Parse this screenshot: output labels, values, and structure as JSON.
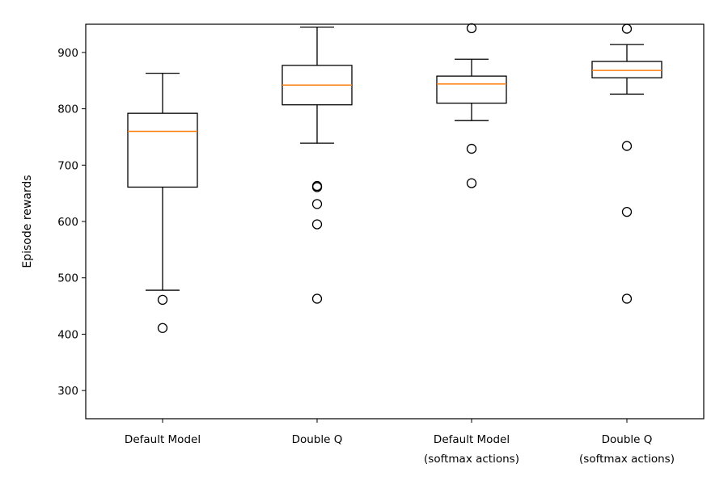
{
  "chart_data": {
    "type": "box",
    "ylabel": "Episode rewards",
    "xlabel": "",
    "ylim": [
      250,
      950
    ],
    "yticks": [
      300,
      400,
      500,
      600,
      700,
      800,
      900
    ],
    "grid": false,
    "categories": [
      [
        "Default Model"
      ],
      [
        "Double Q"
      ],
      [
        "Default Model",
        "(softmax actions)"
      ],
      [
        "Double Q",
        "(softmax actions)"
      ]
    ],
    "boxes": [
      {
        "whisker_low": 478,
        "q1": 661,
        "median": 760,
        "q3": 792,
        "whisker_high": 863,
        "outliers": [
          461,
          411
        ]
      },
      {
        "whisker_low": 739,
        "q1": 807,
        "median": 842,
        "q3": 877,
        "whisker_high": 945,
        "outliers": [
          663,
          661,
          631,
          595,
          463
        ]
      },
      {
        "whisker_low": 779,
        "q1": 810,
        "median": 844,
        "q3": 858,
        "whisker_high": 888,
        "outliers": [
          943,
          729,
          668
        ]
      },
      {
        "whisker_low": 826,
        "q1": 855,
        "median": 868,
        "q3": 884,
        "whisker_high": 914,
        "outliers": [
          942,
          734,
          617,
          463
        ]
      }
    ],
    "colors": {
      "box": "#000000",
      "median": "#ff7f0e",
      "background": "#ffffff"
    }
  }
}
